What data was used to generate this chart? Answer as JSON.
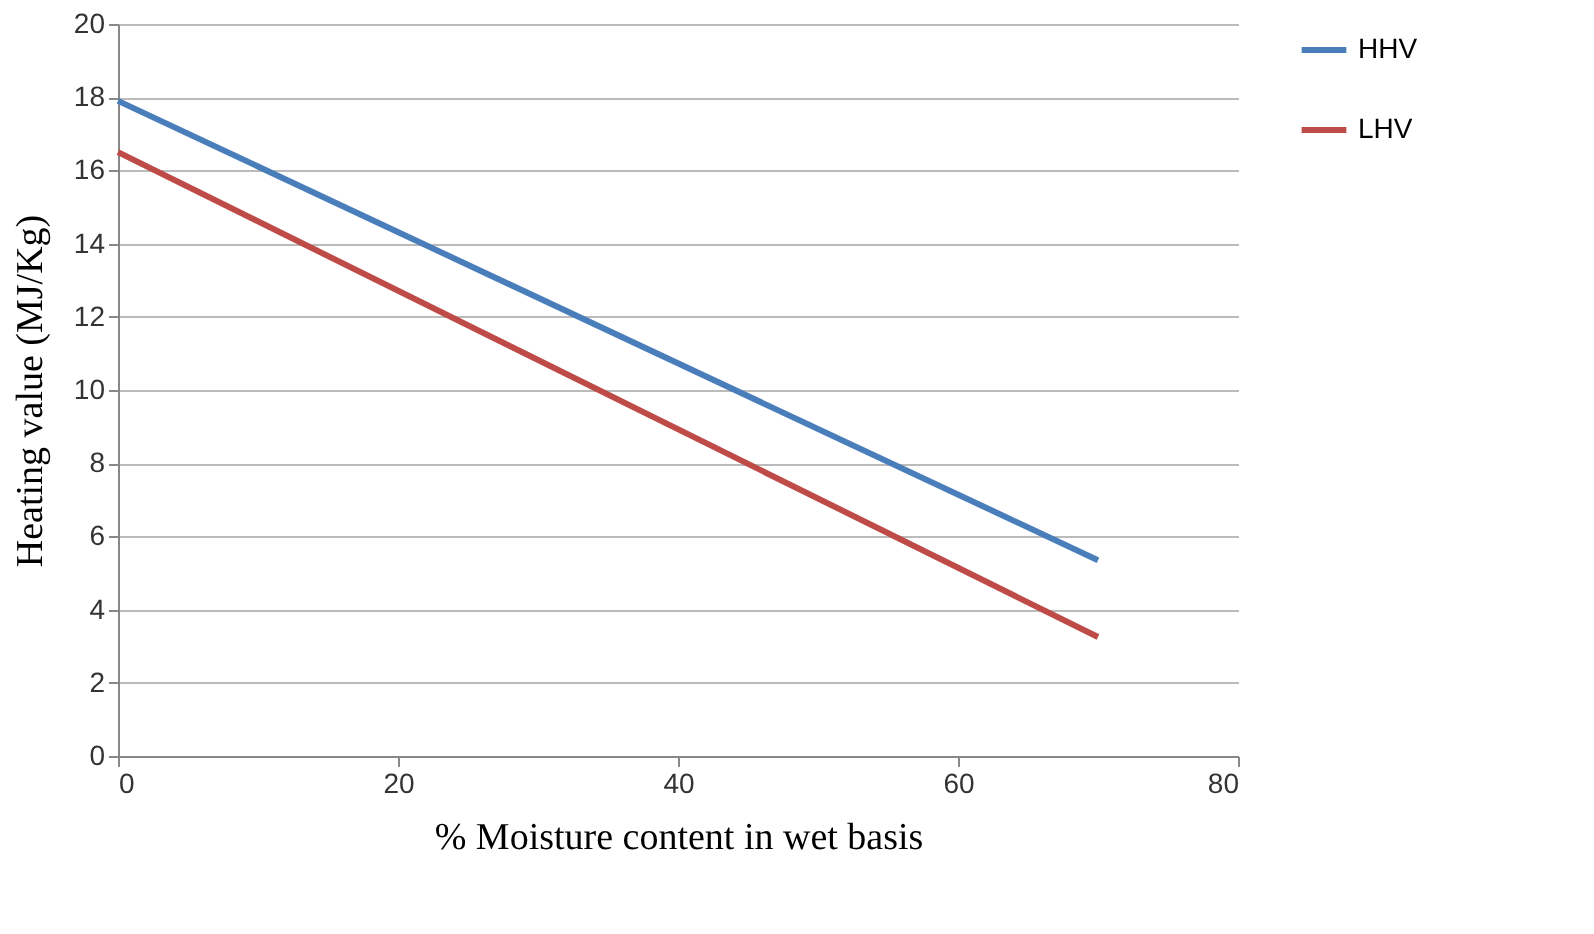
{
  "chart_data": {
    "type": "line",
    "xlabel": "% Moisture content in wet basis",
    "ylabel": "Heating value (MJ/Kg)",
    "x": [
      0,
      70
    ],
    "series": [
      {
        "name": "HHV",
        "color": "#4a7ebb",
        "values": [
          17.9,
          5.35
        ]
      },
      {
        "name": "LHV",
        "color": "#be4b48",
        "values": [
          16.5,
          3.25
        ]
      }
    ],
    "xlim": [
      0,
      80
    ],
    "xticks": [
      0,
      20,
      40,
      60,
      80
    ],
    "ylim": [
      0,
      20
    ],
    "yticks": [
      0,
      2,
      4,
      6,
      8,
      10,
      12,
      14,
      16,
      18,
      20
    ],
    "grid": "y",
    "legend": "right",
    "marker": "none",
    "line_style": "solid"
  }
}
